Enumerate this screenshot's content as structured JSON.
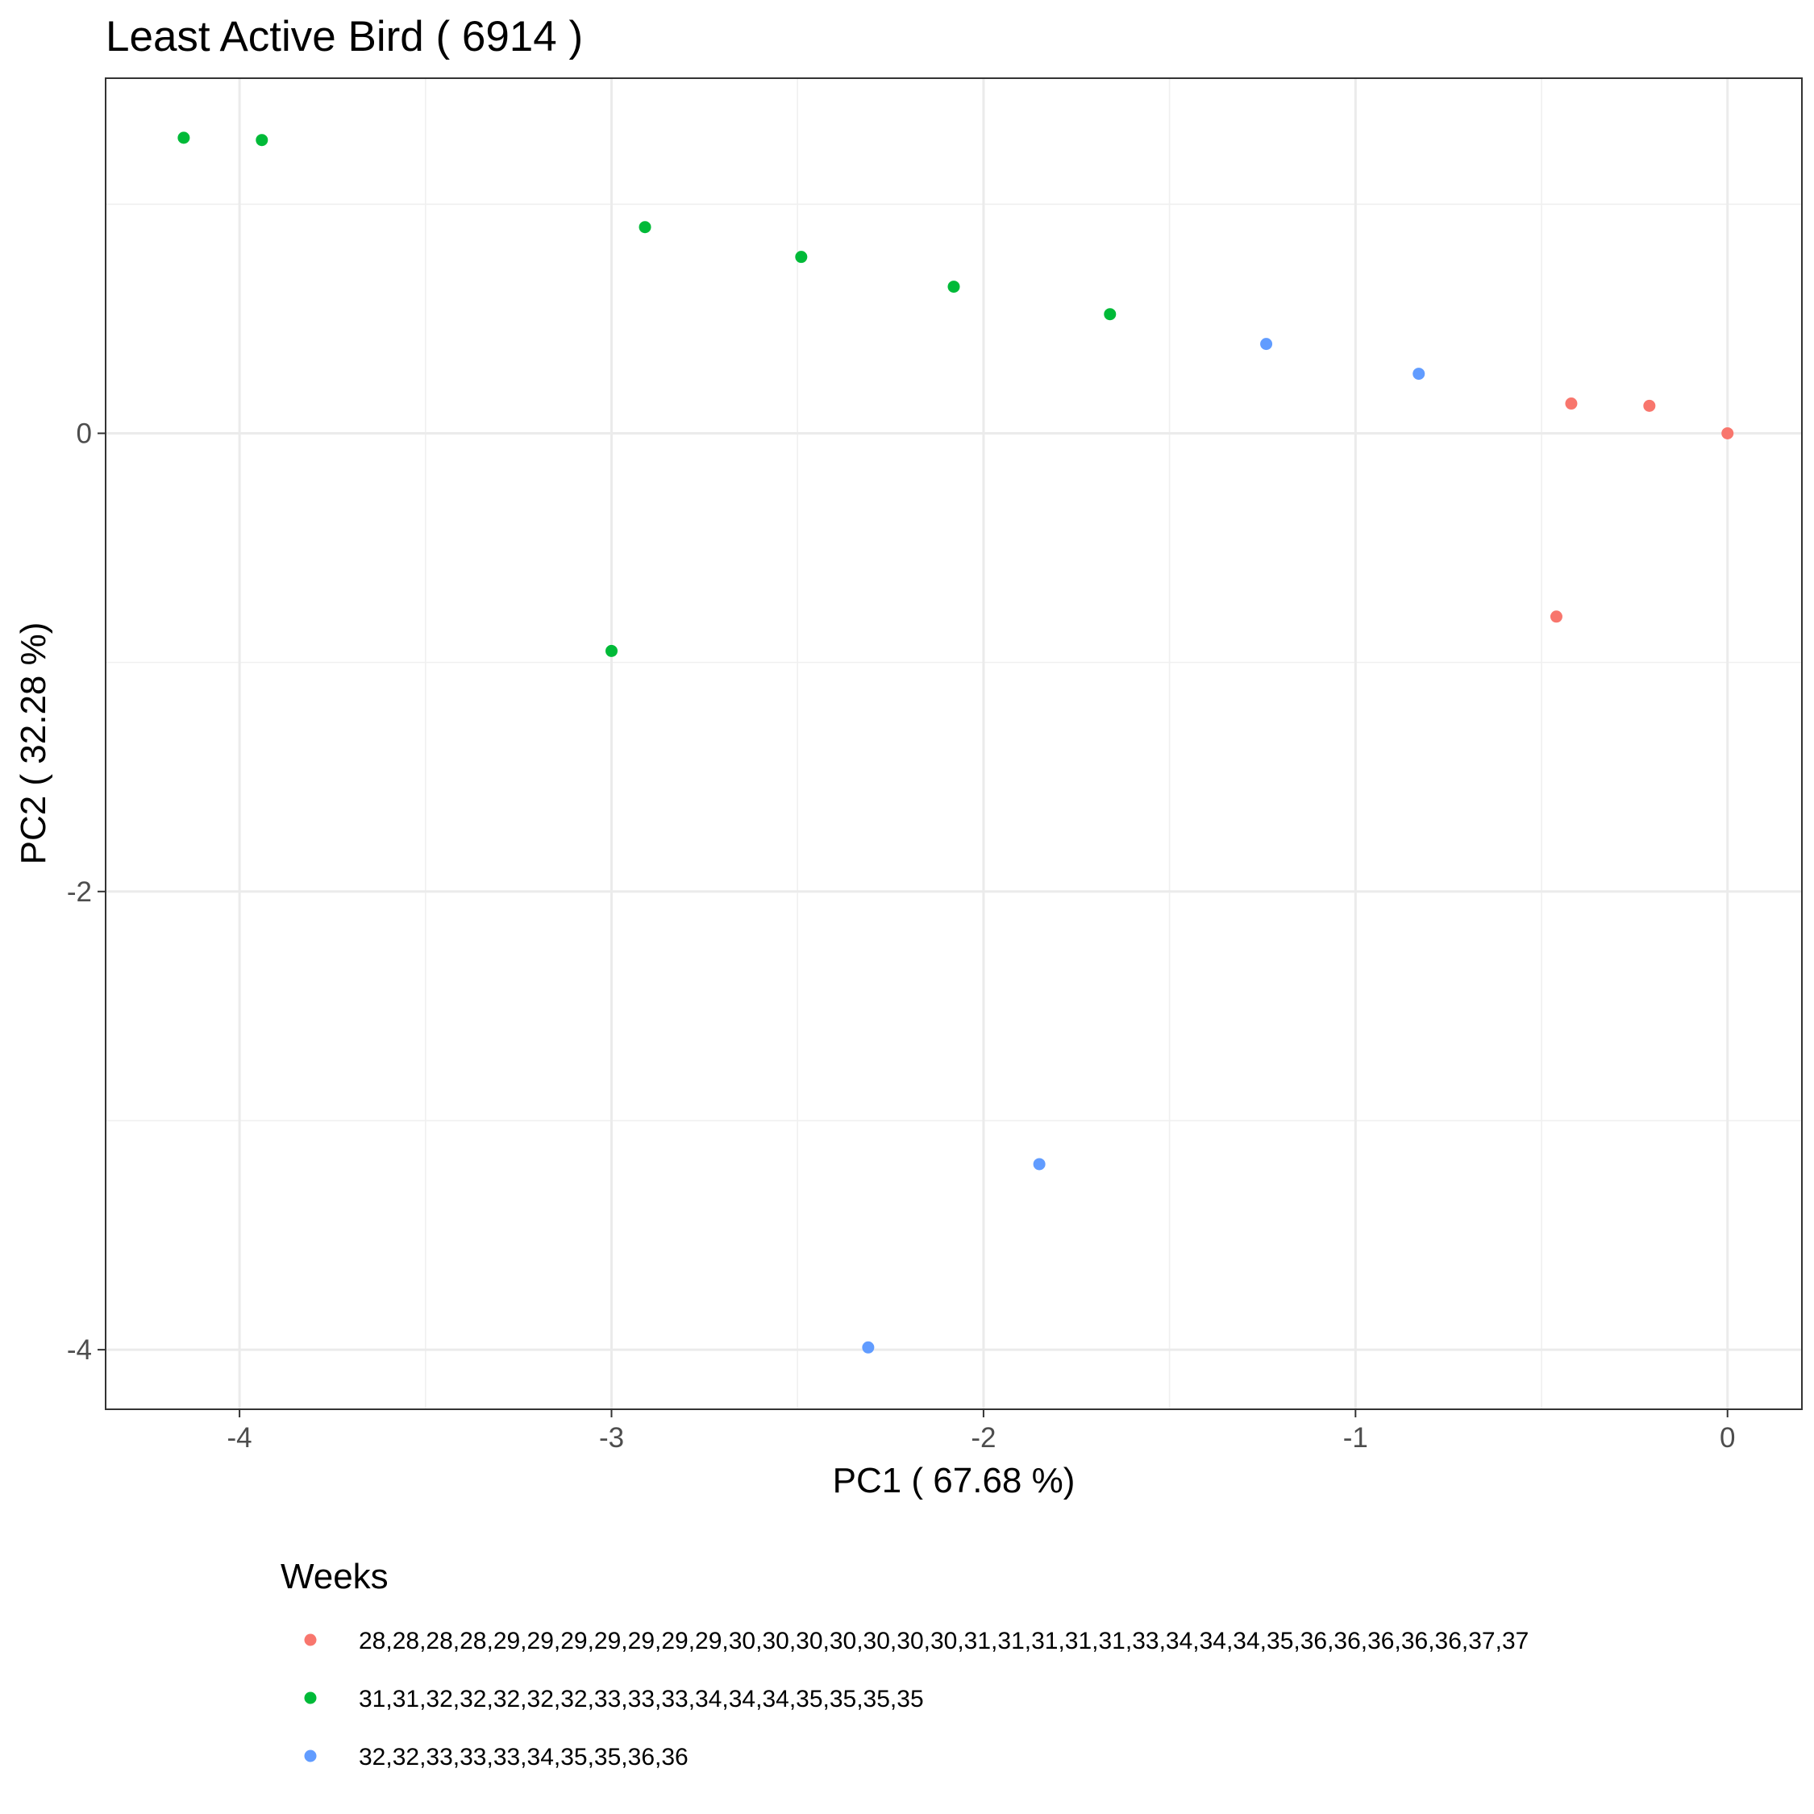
{
  "chart_data": {
    "type": "scatter",
    "title": "Least Active Bird ( 6914 )",
    "xlabel": "PC1 ( 67.68 %)",
    "ylabel": "PC2 ( 32.28 %)",
    "xlim": [
      -4.36,
      0.2
    ],
    "ylim": [
      -4.26,
      1.55
    ],
    "x_ticks": [
      -4,
      -3,
      -2,
      -1,
      0
    ],
    "y_ticks": [
      -4,
      -2,
      0
    ],
    "x_tick_labels": [
      "-4",
      "-3",
      "-2",
      "-1",
      "0"
    ],
    "y_tick_labels": [
      "-4",
      "-2",
      "0"
    ],
    "grid": true,
    "legend_title": "Weeks",
    "legend_position": "bottom",
    "series": [
      {
        "name": "28,28,28,28,29,29,29,29,29,29,29,30,30,30,30,30,30,30,31,31,31,31,31,33,34,34,34,35,36,36,36,36,36,37,37",
        "color": "#F8766D",
        "points": [
          {
            "x": -0.42,
            "y": 0.13
          },
          {
            "x": -0.21,
            "y": 0.12
          },
          {
            "x": 0.0,
            "y": 0.0
          },
          {
            "x": -0.46,
            "y": -0.8
          }
        ]
      },
      {
        "name": "31,31,32,32,32,32,32,33,33,33,34,34,34,35,35,35,35",
        "color": "#00BA38",
        "points": [
          {
            "x": -4.15,
            "y": 1.29
          },
          {
            "x": -3.94,
            "y": 1.28
          },
          {
            "x": -2.91,
            "y": 0.9
          },
          {
            "x": -2.49,
            "y": 0.77
          },
          {
            "x": -2.08,
            "y": 0.64
          },
          {
            "x": -1.66,
            "y": 0.52
          },
          {
            "x": -3.0,
            "y": -0.95
          }
        ]
      },
      {
        "name": "32,32,33,33,33,34,35,35,36,36",
        "color": "#619CFF",
        "points": [
          {
            "x": -1.24,
            "y": 0.39
          },
          {
            "x": -0.83,
            "y": 0.26
          },
          {
            "x": -1.85,
            "y": -3.19
          },
          {
            "x": -2.31,
            "y": -3.99
          }
        ]
      }
    ]
  }
}
